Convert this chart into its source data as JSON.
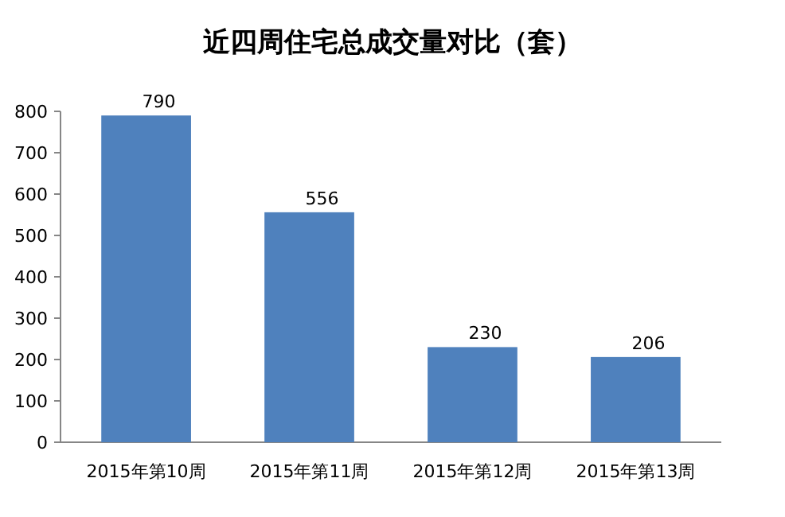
{
  "chart_data": {
    "type": "bar",
    "title": "近四周住宅总成交量对比（套）",
    "categories": [
      "2015年第10周",
      "2015年第11周",
      "2015年第12周",
      "2015年第13周"
    ],
    "values": [
      790,
      556,
      230,
      206
    ],
    "color": "#4f81bd",
    "ylim": [
      0,
      800
    ],
    "yticks": [
      0,
      100,
      200,
      300,
      400,
      500,
      600,
      700,
      800
    ],
    "data_labels": true
  }
}
